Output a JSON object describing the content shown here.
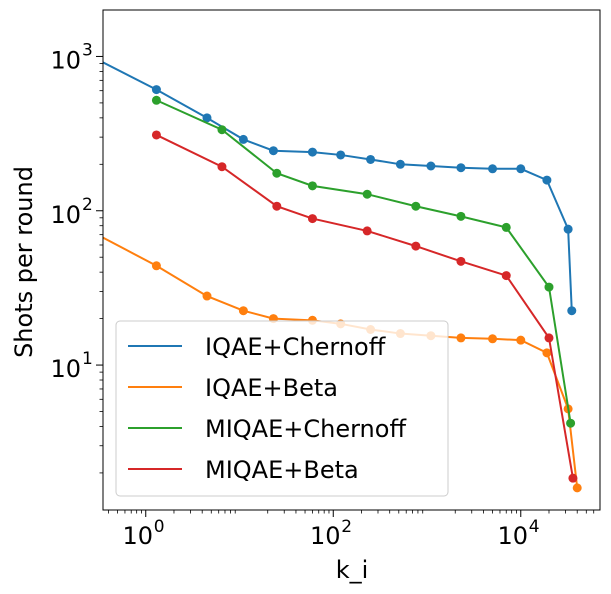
{
  "chart_data": {
    "type": "line",
    "xscale": "log",
    "yscale": "log",
    "xlabel": "k_i",
    "ylabel": "Shots per round",
    "xlim": [
      0.35,
      70000
    ],
    "ylim": [
      1.15,
      2000
    ],
    "x_ticks": [
      {
        "value": 1,
        "base": "10",
        "exp": "0"
      },
      {
        "value": 100,
        "base": "10",
        "exp": "2"
      },
      {
        "value": 10000,
        "base": "10",
        "exp": "4"
      }
    ],
    "y_ticks": [
      {
        "value": 10,
        "base": "10",
        "exp": "1"
      },
      {
        "value": 100,
        "base": "10",
        "exp": "2"
      },
      {
        "value": 1000,
        "base": "10",
        "exp": "3"
      }
    ],
    "grid": false,
    "legend_position": "lower-left",
    "series": [
      {
        "name": "IQAE+Chernoff",
        "color": "#1f77b4",
        "points": [
          [
            0.1,
            1350
          ],
          [
            1.3,
            610
          ],
          [
            4.5,
            400
          ],
          [
            11,
            290
          ],
          [
            23,
            245
          ],
          [
            60,
            240
          ],
          [
            120,
            230
          ],
          [
            250,
            215
          ],
          [
            520,
            200
          ],
          [
            1100,
            195
          ],
          [
            2300,
            190
          ],
          [
            5000,
            187
          ],
          [
            10000,
            187
          ],
          [
            19000,
            158
          ],
          [
            32000,
            76
          ],
          [
            35000,
            22.5
          ]
        ]
      },
      {
        "name": "IQAE+Beta",
        "color": "#ff7f0e",
        "points": [
          [
            0.1,
            100
          ],
          [
            1.3,
            44
          ],
          [
            4.5,
            28
          ],
          [
            11,
            22.5
          ],
          [
            23,
            20
          ],
          [
            60,
            19.5
          ],
          [
            120,
            18.5
          ],
          [
            250,
            17
          ],
          [
            520,
            16
          ],
          [
            1100,
            15.5
          ],
          [
            2300,
            15
          ],
          [
            5000,
            14.8
          ],
          [
            10000,
            14.5
          ],
          [
            19000,
            12
          ],
          [
            32000,
            5.2
          ],
          [
            40000,
            1.6
          ]
        ]
      },
      {
        "name": "MIQAE+Chernoff",
        "color": "#2ca02c",
        "points": [
          [
            1.3,
            520
          ],
          [
            6.5,
            335
          ],
          [
            25,
            175
          ],
          [
            60,
            145
          ],
          [
            230,
            128
          ],
          [
            760,
            107
          ],
          [
            2300,
            92
          ],
          [
            7000,
            78
          ],
          [
            20000,
            32
          ],
          [
            34000,
            4.2
          ]
        ]
      },
      {
        "name": "MIQAE+Beta",
        "color": "#d62728",
        "points": [
          [
            1.3,
            310
          ],
          [
            6.5,
            193
          ],
          [
            25,
            107
          ],
          [
            60,
            89
          ],
          [
            230,
            74
          ],
          [
            760,
            59
          ],
          [
            2300,
            47
          ],
          [
            7000,
            38
          ],
          [
            20000,
            15
          ],
          [
            36000,
            1.85
          ]
        ]
      }
    ]
  }
}
